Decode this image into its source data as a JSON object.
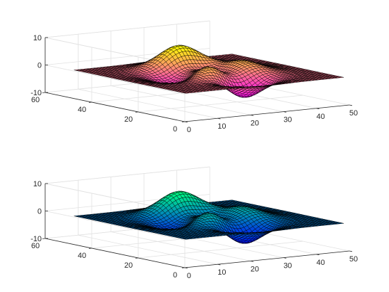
{
  "chart_data": [
    {
      "type": "surface",
      "function": "peaks",
      "grid_size": 49,
      "colormap": "spring",
      "colormap_colors": [
        "#ff00ff",
        "#ffff00"
      ],
      "edge_color": "#000000",
      "grid": true,
      "view": {
        "azimuth": -37.5,
        "elevation": 30
      },
      "xlim": [
        0,
        50
      ],
      "ylim": [
        0,
        60
      ],
      "zlim": [
        -10,
        10
      ],
      "x_ticks": [
        0,
        10,
        20,
        30,
        40,
        50
      ],
      "y_ticks": [
        0,
        20,
        40,
        60
      ],
      "z_ticks": [
        -10,
        0,
        10
      ],
      "x_tick_labels": [
        "0",
        "10",
        "20",
        "30",
        "40",
        "50"
      ],
      "y_tick_labels": [
        "0",
        "20",
        "40",
        "60"
      ],
      "z_tick_labels": [
        "-10",
        "0",
        "10"
      ],
      "data_range": {
        "x": [
          1,
          49
        ],
        "y": [
          1,
          49
        ],
        "z": [
          -6.55,
          8.1
        ]
      }
    },
    {
      "type": "surface",
      "function": "peaks",
      "grid_size": 49,
      "colormap": "winter",
      "colormap_colors": [
        "#0000ff",
        "#00ff80"
      ],
      "edge_color": "#000000",
      "grid": true,
      "view": {
        "azimuth": -37.5,
        "elevation": 30
      },
      "xlim": [
        0,
        50
      ],
      "ylim": [
        0,
        60
      ],
      "zlim": [
        -10,
        10
      ],
      "x_ticks": [
        0,
        10,
        20,
        30,
        40,
        50
      ],
      "y_ticks": [
        0,
        20,
        40,
        60
      ],
      "z_ticks": [
        -10,
        0,
        10
      ],
      "x_tick_labels": [
        "0",
        "10",
        "20",
        "30",
        "40",
        "50"
      ],
      "y_tick_labels": [
        "0",
        "20",
        "40",
        "60"
      ],
      "z_tick_labels": [
        "-10",
        "0",
        "10"
      ],
      "data_range": {
        "x": [
          1,
          49
        ],
        "y": [
          1,
          49
        ],
        "z": [
          -6.55,
          8.1
        ]
      }
    }
  ]
}
